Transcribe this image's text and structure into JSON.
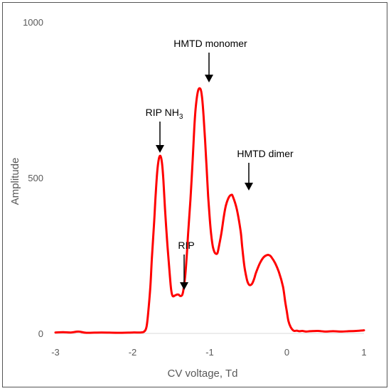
{
  "chart_data": {
    "type": "line",
    "title": "",
    "xlabel": "CV voltage, Td",
    "ylabel": "Amplitude",
    "xlim": [
      -3,
      1
    ],
    "ylim": [
      0,
      1000
    ],
    "x_ticks": [
      "-3",
      "-2",
      "-1",
      "0",
      "1"
    ],
    "y_ticks": [
      "0",
      "500",
      "1000"
    ],
    "grid": false,
    "legend": "none",
    "line_color": "#ff0000",
    "series": [
      {
        "x": [
          -3.0,
          -2.9,
          -2.8,
          -2.7,
          -2.6,
          -2.4,
          -2.2,
          -2.0,
          -1.9,
          -1.85,
          -1.82,
          -1.8,
          -1.77,
          -1.75,
          -1.72,
          -1.7,
          -1.68,
          -1.66,
          -1.64,
          -1.62,
          -1.6,
          -1.58,
          -1.55,
          -1.52,
          -1.5,
          -1.48,
          -1.45,
          -1.42,
          -1.4,
          -1.38,
          -1.35,
          -1.32,
          -1.3,
          -1.28,
          -1.25,
          -1.22,
          -1.2,
          -1.18,
          -1.15,
          -1.12,
          -1.1,
          -1.08,
          -1.06,
          -1.04,
          -1.02,
          -1.0,
          -0.98,
          -0.96,
          -0.94,
          -0.92,
          -0.9,
          -0.88,
          -0.85,
          -0.82,
          -0.8,
          -0.78,
          -0.75,
          -0.72,
          -0.7,
          -0.65,
          -0.6,
          -0.58,
          -0.55,
          -0.52,
          -0.5,
          -0.48,
          -0.45,
          -0.42,
          -0.4,
          -0.35,
          -0.3,
          -0.25,
          -0.22,
          -0.2,
          -0.15,
          -0.1,
          -0.05,
          -0.02,
          0.0,
          0.02,
          0.05,
          0.08,
          0.1,
          0.13,
          0.16,
          0.2,
          0.25,
          0.3,
          0.4,
          0.5,
          0.6,
          0.7,
          0.8,
          0.9,
          1.0
        ],
        "y": [
          3,
          4,
          3,
          6,
          2,
          3,
          2,
          3,
          3,
          6,
          20,
          60,
          150,
          240,
          360,
          450,
          520,
          560,
          570,
          550,
          490,
          400,
          290,
          195,
          140,
          120,
          122,
          125,
          124,
          120,
          128,
          180,
          240,
          320,
          430,
          560,
          660,
          730,
          780,
          785,
          760,
          700,
          620,
          530,
          440,
          370,
          315,
          280,
          262,
          256,
          258,
          280,
          320,
          370,
          400,
          420,
          438,
          445,
          440,
          400,
          330,
          280,
          215,
          175,
          160,
          155,
          160,
          178,
          195,
          225,
          245,
          252,
          250,
          245,
          225,
          195,
          150,
          100,
          70,
          40,
          20,
          10,
          8,
          9,
          7,
          8,
          6,
          7,
          8,
          6,
          7,
          6,
          7,
          8,
          10
        ]
      }
    ],
    "annotations": [
      {
        "text": "HMTD monomer",
        "x": -1.05,
        "y": 780
      },
      {
        "text": "RIP NH",
        "sub": "3",
        "x": -1.64,
        "y": 570
      },
      {
        "text": "HMTD dimer",
        "x": -0.5,
        "y": 440
      },
      {
        "text": "RIP",
        "x": -1.32,
        "y": 130
      }
    ]
  }
}
